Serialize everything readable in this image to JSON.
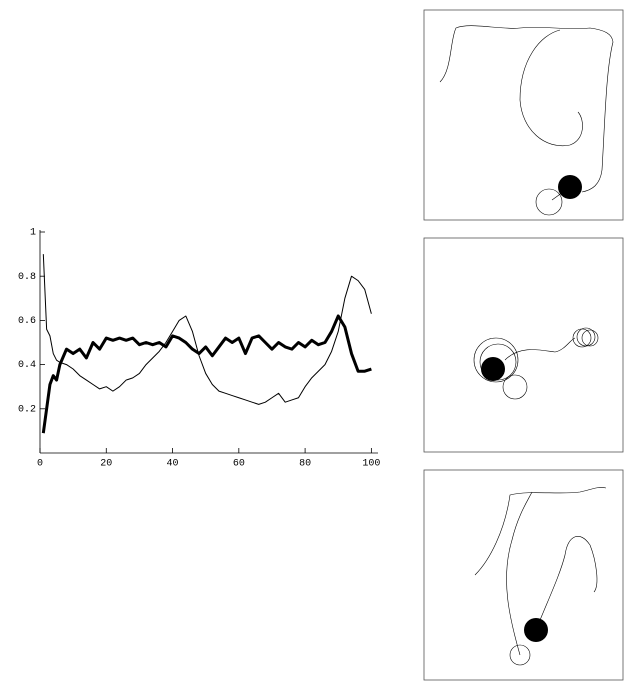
{
  "chart_data": {
    "type": "line",
    "x": [
      1,
      2,
      3,
      4,
      5,
      6,
      8,
      10,
      12,
      14,
      16,
      18,
      20,
      22,
      24,
      26,
      28,
      30,
      32,
      34,
      36,
      38,
      40,
      42,
      44,
      46,
      48,
      50,
      52,
      54,
      56,
      58,
      60,
      62,
      64,
      66,
      68,
      70,
      72,
      74,
      76,
      78,
      80,
      82,
      84,
      86,
      88,
      90,
      92,
      94,
      96,
      98,
      100
    ],
    "series": [
      {
        "color": "#000000",
        "values": [
          0.9,
          0.56,
          0.53,
          0.45,
          0.42,
          0.41,
          0.4,
          0.38,
          0.35,
          0.33,
          0.31,
          0.29,
          0.3,
          0.28,
          0.3,
          0.33,
          0.34,
          0.36,
          0.4,
          0.43,
          0.46,
          0.5,
          0.55,
          0.6,
          0.62,
          0.55,
          0.44,
          0.36,
          0.31,
          0.28,
          0.27,
          0.26,
          0.25,
          0.24,
          0.23,
          0.22,
          0.23,
          0.25,
          0.27,
          0.23,
          0.24,
          0.25,
          0.3,
          0.34,
          0.37,
          0.4,
          0.46,
          0.55,
          0.7,
          0.8,
          0.78,
          0.74,
          0.63
        ]
      },
      {
        "color": "#000000",
        "values": [
          0.09,
          0.2,
          0.31,
          0.35,
          0.33,
          0.4,
          0.47,
          0.45,
          0.47,
          0.43,
          0.5,
          0.47,
          0.52,
          0.51,
          0.52,
          0.51,
          0.52,
          0.49,
          0.5,
          0.49,
          0.5,
          0.48,
          0.53,
          0.52,
          0.5,
          0.47,
          0.45,
          0.48,
          0.44,
          0.48,
          0.52,
          0.5,
          0.52,
          0.45,
          0.52,
          0.53,
          0.5,
          0.47,
          0.5,
          0.48,
          0.47,
          0.5,
          0.48,
          0.51,
          0.49,
          0.5,
          0.55,
          0.62,
          0.57,
          0.45,
          0.37,
          0.37,
          0.38
        ]
      }
    ],
    "xlim": [
      0,
      102
    ],
    "xticks": [
      0,
      20,
      40,
      60,
      80,
      100
    ],
    "ylim": [
      0,
      1
    ],
    "yticks": [
      0.2,
      0.4,
      0.6,
      0.8,
      1
    ]
  }
}
